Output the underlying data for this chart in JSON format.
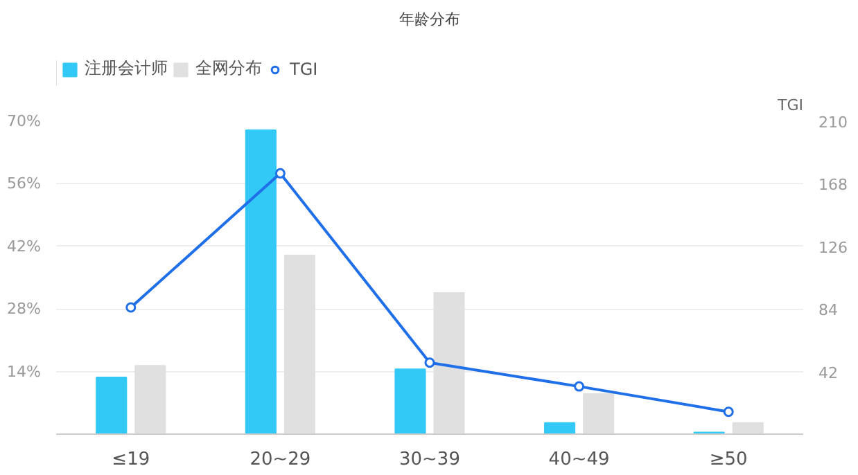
{
  "chart_data": {
    "type": "bar",
    "title": "年龄分布",
    "y2label": "TGI",
    "categories": [
      "≤19",
      "20~29",
      "30~39",
      "40~49",
      "≥50"
    ],
    "series": [
      {
        "name": "注册会计师",
        "color": "#33c9f7",
        "values": [
          12.7,
          68,
          14.5,
          2.5,
          0.4
        ]
      },
      {
        "name": "全网分布",
        "color": "#e0e0e0",
        "values": [
          15.3,
          40,
          31.6,
          9,
          2.5
        ]
      },
      {
        "name": "TGI",
        "type": "line",
        "axis": "y2",
        "color": "#1f6fe8",
        "marker": "circle",
        "values": [
          85,
          175,
          48,
          32,
          15
        ]
      }
    ],
    "ylim": [
      0,
      70
    ],
    "yticks": [
      {
        "value": 0,
        "label": null
      },
      {
        "value": 14,
        "label": "14%"
      },
      {
        "value": 28,
        "label": "28%"
      },
      {
        "value": 42,
        "label": "42%"
      },
      {
        "value": 56,
        "label": "56%"
      },
      {
        "value": 70,
        "label": "70%"
      }
    ],
    "y2lim": [
      0,
      210
    ],
    "y2ticks": [
      42,
      84,
      126,
      168,
      210
    ],
    "grid": "y",
    "legend": "top left"
  }
}
